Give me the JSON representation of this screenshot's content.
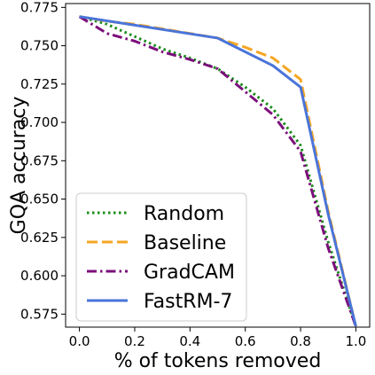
{
  "chart_data": {
    "type": "line",
    "title": "",
    "xlabel": "% of tokens removed",
    "ylabel": "GQA accuracy",
    "xlim": [
      -0.05,
      1.05
    ],
    "ylim": [
      0.5665,
      0.7775
    ],
    "xticks": [
      0.0,
      0.2,
      0.4,
      0.6,
      0.8,
      1.0
    ],
    "xtick_labels": [
      "0.0",
      "0.2",
      "0.4",
      "0.6",
      "0.8",
      "1.0"
    ],
    "yticks": [
      0.575,
      0.6,
      0.625,
      0.65,
      0.675,
      0.7,
      0.725,
      0.75,
      0.775
    ],
    "ytick_labels": [
      "0.575",
      "0.600",
      "0.625",
      "0.650",
      "0.675",
      "0.700",
      "0.725",
      "0.750",
      "0.775"
    ],
    "grid": false,
    "legend_position": "bottom-left",
    "series": [
      {
        "name": "Random",
        "color": "#1a8a1a",
        "style": "dotted",
        "x": [
          0.0,
          0.1,
          0.2,
          0.3,
          0.4,
          0.5,
          0.6,
          0.7,
          0.8,
          0.9,
          1.0
        ],
        "y": [
          0.769,
          0.764,
          0.756,
          0.748,
          0.742,
          0.735,
          0.723,
          0.709,
          0.685,
          0.622,
          0.567
        ]
      },
      {
        "name": "Baseline",
        "color": "#f5a623",
        "style": "dashed",
        "x": [
          0.0,
          0.1,
          0.2,
          0.3,
          0.4,
          0.5,
          0.6,
          0.7,
          0.8,
          0.9,
          1.0
        ],
        "y": [
          0.769,
          0.766,
          0.764,
          0.761,
          0.758,
          0.755,
          0.749,
          0.742,
          0.728,
          0.642,
          0.567
        ]
      },
      {
        "name": "GradCAM",
        "color": "#7b0f7b",
        "style": "dashdot",
        "x": [
          0.0,
          0.1,
          0.2,
          0.3,
          0.4,
          0.5,
          0.6,
          0.7,
          0.8,
          0.9,
          1.0
        ],
        "y": [
          0.769,
          0.758,
          0.753,
          0.746,
          0.741,
          0.735,
          0.72,
          0.705,
          0.681,
          0.618,
          0.567
        ]
      },
      {
        "name": "FastRM-7",
        "color": "#4a74d9",
        "style": "solid",
        "x": [
          0.0,
          0.5,
          0.7,
          0.8,
          0.9,
          1.0
        ],
        "y": [
          0.769,
          0.755,
          0.737,
          0.723,
          0.64,
          0.567
        ]
      }
    ]
  }
}
